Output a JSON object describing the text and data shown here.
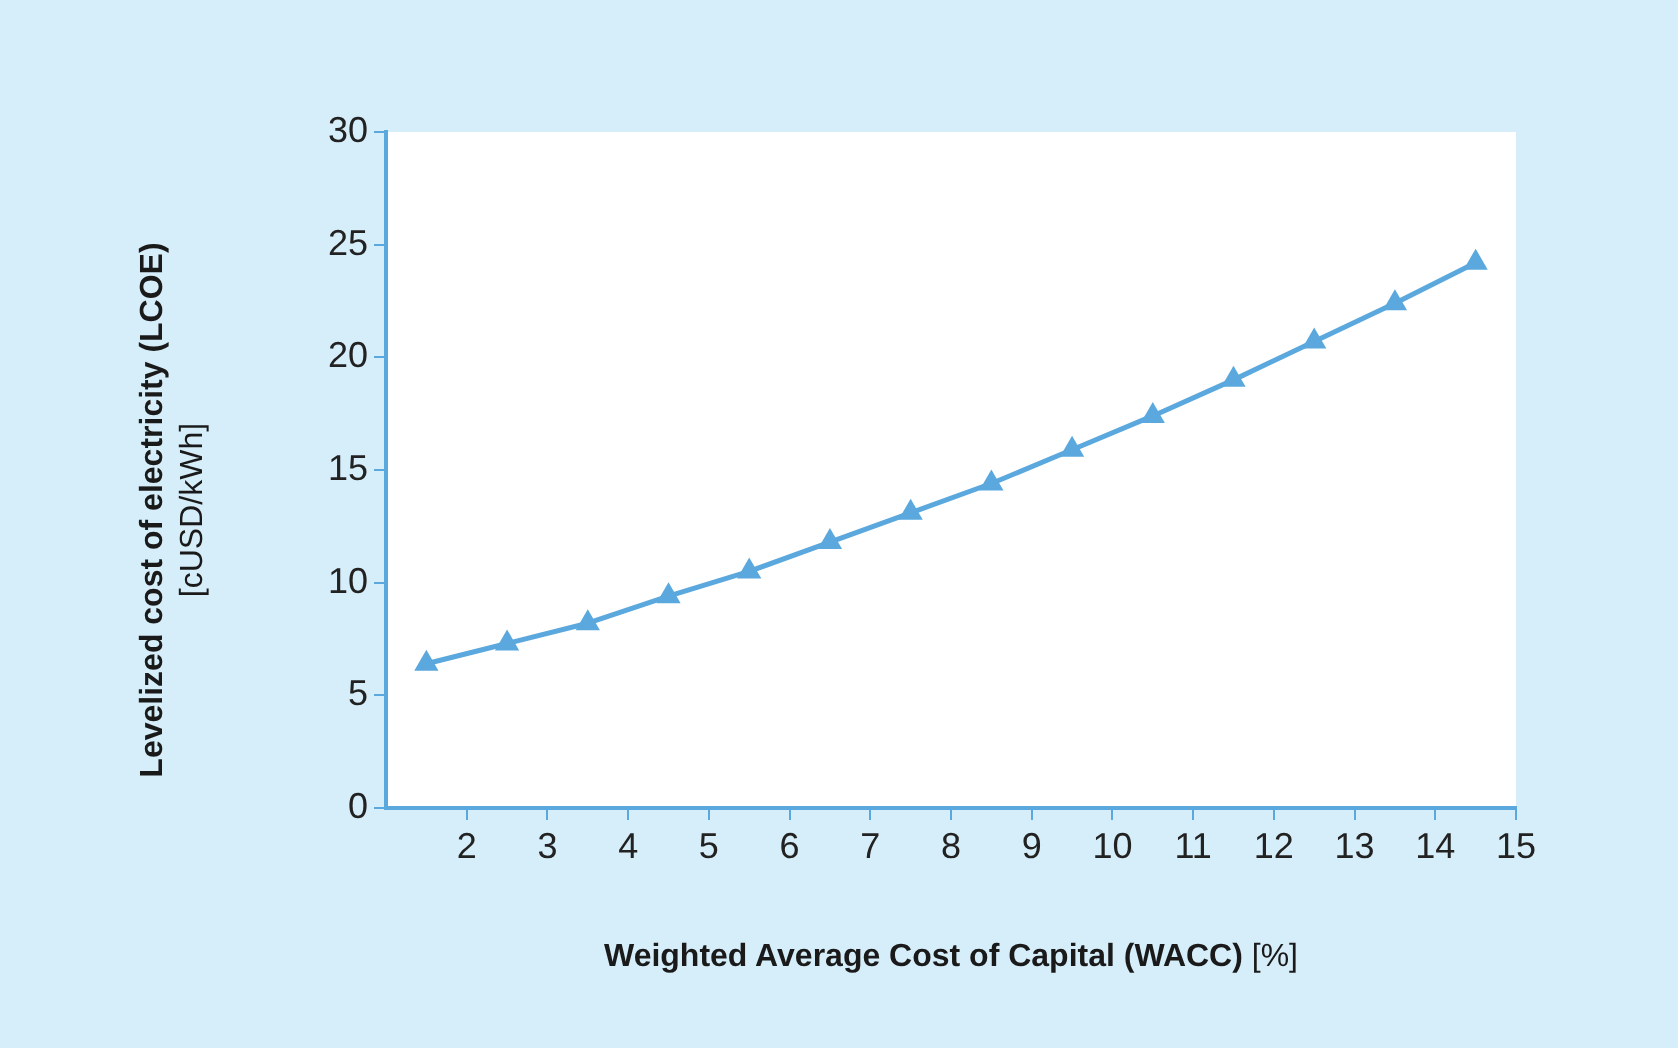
{
  "chart_data": {
    "type": "line",
    "xlabel": "Weighted Average Cost of Capital (WACC) [%]",
    "ylabel": "Levelized cost of electricity (LCOE) [cUSD/kWh]",
    "x": [
      1.5,
      2.5,
      3.5,
      4.5,
      5.5,
      6.5,
      7.5,
      8.5,
      9.5,
      10.5,
      11.5,
      12.5,
      13.5,
      14.5
    ],
    "series": [
      {
        "color": "#5aa8dd",
        "values": [
          6.4,
          7.3,
          8.2,
          9.4,
          10.5,
          11.8,
          13.1,
          14.4,
          15.9,
          17.4,
          19.0,
          20.7,
          22.4,
          24.2
        ]
      }
    ],
    "xlim": [
      1,
      15
    ],
    "xticks": [
      2,
      3,
      4,
      5,
      6,
      7,
      8,
      9,
      10,
      11,
      12,
      13,
      14,
      15
    ],
    "ylim": [
      0,
      30
    ],
    "yticks": [
      0,
      5,
      10,
      15,
      20,
      25,
      30
    ],
    "grid": false,
    "legend": false,
    "marker": "triangle",
    "line_style": "solid"
  }
}
